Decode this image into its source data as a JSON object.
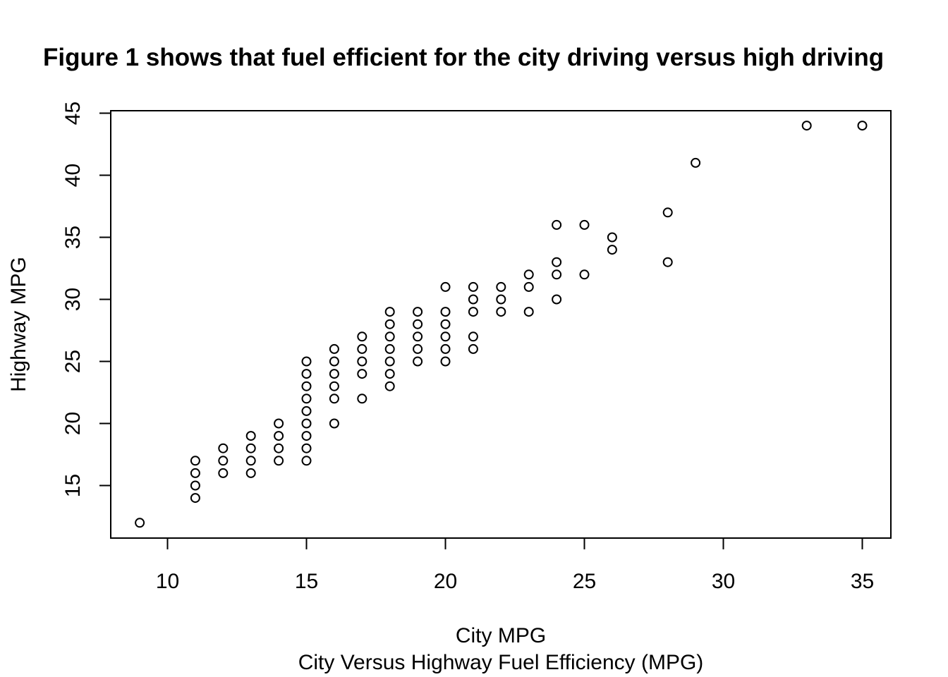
{
  "chart_data": {
    "type": "scatter",
    "title": "Figure 1 shows that fuel efficient for the city driving versus high driving",
    "xlabel": "City MPG",
    "ylabel": "Highway MPG",
    "caption": "City Versus Highway Fuel Efficiency (MPG)",
    "xlim": [
      9,
      35
    ],
    "ylim": [
      12,
      44
    ],
    "xticks": [
      10,
      15,
      20,
      25,
      30,
      35
    ],
    "yticks": [
      15,
      20,
      25,
      30,
      35,
      40,
      45
    ],
    "marker": "open-circle",
    "grid": false,
    "legend": "none",
    "colors": {
      "marker": "#000000",
      "axes": "#000000",
      "background": "#ffffff"
    },
    "points": [
      {
        "x": 9,
        "y": 12
      },
      {
        "x": 11,
        "y": 14
      },
      {
        "x": 11,
        "y": 15
      },
      {
        "x": 11,
        "y": 16
      },
      {
        "x": 11,
        "y": 17
      },
      {
        "x": 12,
        "y": 16
      },
      {
        "x": 12,
        "y": 17
      },
      {
        "x": 12,
        "y": 18
      },
      {
        "x": 13,
        "y": 16
      },
      {
        "x": 13,
        "y": 17
      },
      {
        "x": 13,
        "y": 18
      },
      {
        "x": 13,
        "y": 19
      },
      {
        "x": 14,
        "y": 17
      },
      {
        "x": 14,
        "y": 18
      },
      {
        "x": 14,
        "y": 19
      },
      {
        "x": 14,
        "y": 20
      },
      {
        "x": 15,
        "y": 17
      },
      {
        "x": 15,
        "y": 18
      },
      {
        "x": 15,
        "y": 19
      },
      {
        "x": 15,
        "y": 20
      },
      {
        "x": 15,
        "y": 21
      },
      {
        "x": 15,
        "y": 22
      },
      {
        "x": 15,
        "y": 23
      },
      {
        "x": 15,
        "y": 24
      },
      {
        "x": 15,
        "y": 25
      },
      {
        "x": 16,
        "y": 20
      },
      {
        "x": 16,
        "y": 22
      },
      {
        "x": 16,
        "y": 23
      },
      {
        "x": 16,
        "y": 24
      },
      {
        "x": 16,
        "y": 25
      },
      {
        "x": 16,
        "y": 26
      },
      {
        "x": 17,
        "y": 22
      },
      {
        "x": 17,
        "y": 24
      },
      {
        "x": 17,
        "y": 25
      },
      {
        "x": 17,
        "y": 26
      },
      {
        "x": 17,
        "y": 27
      },
      {
        "x": 18,
        "y": 23
      },
      {
        "x": 18,
        "y": 24
      },
      {
        "x": 18,
        "y": 25
      },
      {
        "x": 18,
        "y": 26
      },
      {
        "x": 18,
        "y": 27
      },
      {
        "x": 18,
        "y": 28
      },
      {
        "x": 18,
        "y": 29
      },
      {
        "x": 19,
        "y": 25
      },
      {
        "x": 19,
        "y": 26
      },
      {
        "x": 19,
        "y": 27
      },
      {
        "x": 19,
        "y": 28
      },
      {
        "x": 19,
        "y": 29
      },
      {
        "x": 20,
        "y": 25
      },
      {
        "x": 20,
        "y": 26
      },
      {
        "x": 20,
        "y": 27
      },
      {
        "x": 20,
        "y": 28
      },
      {
        "x": 20,
        "y": 29
      },
      {
        "x": 20,
        "y": 31
      },
      {
        "x": 21,
        "y": 26
      },
      {
        "x": 21,
        "y": 27
      },
      {
        "x": 21,
        "y": 29
      },
      {
        "x": 21,
        "y": 30
      },
      {
        "x": 21,
        "y": 31
      },
      {
        "x": 22,
        "y": 29
      },
      {
        "x": 22,
        "y": 30
      },
      {
        "x": 22,
        "y": 31
      },
      {
        "x": 23,
        "y": 29
      },
      {
        "x": 23,
        "y": 31
      },
      {
        "x": 23,
        "y": 32
      },
      {
        "x": 24,
        "y": 30
      },
      {
        "x": 24,
        "y": 32
      },
      {
        "x": 24,
        "y": 33
      },
      {
        "x": 24,
        "y": 36
      },
      {
        "x": 25,
        "y": 32
      },
      {
        "x": 25,
        "y": 36
      },
      {
        "x": 26,
        "y": 34
      },
      {
        "x": 26,
        "y": 35
      },
      {
        "x": 28,
        "y": 33
      },
      {
        "x": 28,
        "y": 37
      },
      {
        "x": 29,
        "y": 41
      },
      {
        "x": 33,
        "y": 44
      },
      {
        "x": 35,
        "y": 44
      }
    ]
  }
}
